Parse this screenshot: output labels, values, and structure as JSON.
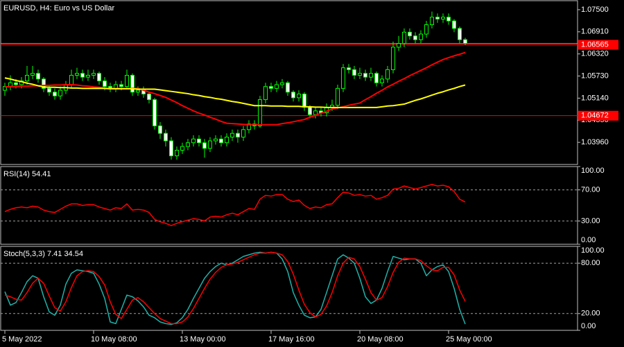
{
  "chart_data": [
    {
      "type": "candlestick",
      "title": "EURUSD, H4:  Euro vs US Dollar",
      "categories": [
        "5 May 2022",
        null,
        null,
        null,
        null,
        null,
        null,
        null,
        null,
        null,
        null,
        null,
        null,
        null,
        null,
        null,
        "10 May 08:00",
        null,
        null,
        null,
        null,
        null,
        null,
        null,
        null,
        null,
        null,
        null,
        null,
        null,
        null,
        null,
        "13 May 00:00",
        null,
        null,
        null,
        null,
        null,
        null,
        null,
        null,
        null,
        null,
        null,
        null,
        null,
        null,
        null,
        "17 May 16:00",
        null,
        null,
        null,
        null,
        null,
        null,
        null,
        null,
        null,
        null,
        null,
        null,
        null,
        null,
        null,
        "20 May 08:00",
        null,
        null,
        null,
        null,
        null,
        null,
        null,
        null,
        null,
        null,
        null,
        null,
        null,
        null,
        null,
        "25 May 00:00",
        null,
        null,
        null
      ],
      "open": [
        1.0535,
        1.0545,
        1.0555,
        1.055,
        1.056,
        1.0575,
        1.058,
        1.0565,
        1.054,
        1.053,
        1.052,
        1.0535,
        1.055,
        1.0575,
        1.058,
        1.057,
        1.0575,
        1.058,
        1.056,
        1.0545,
        1.054,
        1.055,
        1.0545,
        1.0575,
        1.053,
        1.0535,
        1.0525,
        1.051,
        1.044,
        1.042,
        1.04,
        1.036,
        1.0375,
        1.0385,
        1.0395,
        1.0405,
        1.0395,
        1.038,
        1.04,
        1.0405,
        1.0395,
        1.041,
        1.042,
        1.041,
        1.043,
        1.0445,
        1.044,
        1.051,
        1.0545,
        1.054,
        1.055,
        1.0555,
        1.053,
        1.0515,
        1.0525,
        1.049,
        1.047,
        1.048,
        1.0475,
        1.049,
        1.0495,
        1.054,
        1.0595,
        1.059,
        1.0575,
        1.058,
        1.057,
        1.058,
        1.0555,
        1.0565,
        1.059,
        1.065,
        1.066,
        1.069,
        1.068,
        1.067,
        1.0685,
        1.071,
        1.073,
        1.0725,
        1.073,
        1.072,
        1.07,
        1.067
      ],
      "high": [
        1.0555,
        1.0575,
        1.0565,
        1.057,
        1.06,
        1.06,
        1.059,
        1.057,
        1.055,
        1.054,
        1.0545,
        1.056,
        1.059,
        1.0595,
        1.059,
        1.059,
        1.059,
        1.0585,
        1.057,
        1.0555,
        1.056,
        1.056,
        1.059,
        1.058,
        1.0545,
        1.0545,
        1.053,
        1.0515,
        1.045,
        1.043,
        1.041,
        1.0385,
        1.0395,
        1.0405,
        1.0415,
        1.0415,
        1.0405,
        1.041,
        1.0415,
        1.0415,
        1.042,
        1.043,
        1.043,
        1.044,
        1.0455,
        1.0455,
        1.052,
        1.0555,
        1.0555,
        1.056,
        1.0565,
        1.056,
        1.0535,
        1.0535,
        1.053,
        1.0495,
        1.049,
        1.049,
        1.05,
        1.051,
        1.055,
        1.0605,
        1.0605,
        1.06,
        1.0595,
        1.059,
        1.0595,
        1.0585,
        1.0575,
        1.06,
        1.0665,
        1.068,
        1.07,
        1.07,
        1.069,
        1.0695,
        1.072,
        1.0745,
        1.074,
        1.074,
        1.074,
        1.0725,
        1.0705,
        1.0675
      ],
      "low": [
        1.052,
        1.0535,
        1.054,
        1.054,
        1.055,
        1.0565,
        1.0555,
        1.053,
        1.052,
        1.051,
        1.051,
        1.0525,
        1.054,
        1.0565,
        1.056,
        1.056,
        1.0565,
        1.055,
        1.0535,
        1.053,
        1.053,
        1.0535,
        1.054,
        1.052,
        1.052,
        1.0515,
        1.05,
        1.043,
        1.0405,
        1.0385,
        1.035,
        1.035,
        1.0365,
        1.0375,
        1.0385,
        1.0385,
        1.0355,
        1.037,
        1.039,
        1.0385,
        1.0385,
        1.04,
        1.0395,
        1.04,
        1.042,
        1.043,
        1.0435,
        1.05,
        1.053,
        1.053,
        1.054,
        1.052,
        1.0505,
        1.0505,
        1.048,
        1.046,
        1.046,
        1.0465,
        1.0465,
        1.048,
        1.0485,
        1.053,
        1.058,
        1.0565,
        1.0565,
        1.056,
        1.056,
        1.0545,
        1.0545,
        1.0555,
        1.058,
        1.064,
        1.065,
        1.067,
        1.066,
        1.066,
        1.0675,
        1.07,
        1.0715,
        1.0715,
        1.071,
        1.069,
        1.066,
        1.0655
      ],
      "close": [
        1.0545,
        1.0555,
        1.055,
        1.056,
        1.0575,
        1.058,
        1.0565,
        1.054,
        1.053,
        1.052,
        1.0535,
        1.055,
        1.0575,
        1.058,
        1.057,
        1.0575,
        1.058,
        1.056,
        1.0545,
        1.054,
        1.055,
        1.0545,
        1.0575,
        1.053,
        1.0535,
        1.0525,
        1.051,
        1.044,
        1.042,
        1.04,
        1.036,
        1.0375,
        1.0385,
        1.0395,
        1.0405,
        1.0395,
        1.038,
        1.04,
        1.0405,
        1.0395,
        1.041,
        1.042,
        1.041,
        1.043,
        1.0445,
        1.044,
        1.051,
        1.0545,
        1.054,
        1.055,
        1.0555,
        1.053,
        1.0515,
        1.0525,
        1.049,
        1.047,
        1.048,
        1.0475,
        1.049,
        1.0495,
        1.054,
        1.0595,
        1.059,
        1.0575,
        1.058,
        1.057,
        1.058,
        1.0555,
        1.0565,
        1.059,
        1.065,
        1.066,
        1.069,
        1.068,
        1.067,
        1.0685,
        1.071,
        1.073,
        1.0725,
        1.073,
        1.072,
        1.07,
        1.067,
        1.066
      ],
      "candle_color": "#00ff00",
      "up_fill": "#000000",
      "down_fill": "#ffffff",
      "series": [
        {
          "color": "#ff0000",
          "values": [
            1.0544,
            1.0545,
            1.0545,
            1.0546,
            1.0546,
            1.0547,
            1.0547,
            1.0548,
            1.0548,
            1.0549,
            1.0549,
            1.055,
            1.055,
            1.0549,
            1.0547,
            1.0546,
            1.0544,
            1.0543,
            1.0541,
            1.054,
            1.054,
            1.054,
            1.054,
            1.054,
            1.054,
            1.0535,
            1.053,
            1.0526,
            1.0521,
            1.0516,
            1.0509,
            1.0502,
            1.0494,
            1.0487,
            1.048,
            1.0474,
            1.0469,
            1.0463,
            1.0458,
            1.0452,
            1.0447,
            1.0446,
            1.0445,
            1.0444,
            1.0443,
            1.0443,
            1.0443,
            1.0443,
            1.0443,
            1.0443,
            1.0446,
            1.0448,
            1.0451,
            1.0454,
            1.0457,
            1.0463,
            1.0468,
            1.0474,
            1.0479,
            1.0485,
            1.0488,
            1.0491,
            1.0495,
            1.0498,
            1.0501,
            1.051,
            1.0518,
            1.0527,
            1.0535,
            1.0544,
            1.0551,
            1.0559,
            1.0566,
            1.0574,
            1.0581,
            1.0588,
            1.0595,
            1.0603,
            1.061,
            1.0617,
            1.0622,
            1.0627,
            1.0631,
            1.0636
          ]
        },
        {
          "color": "#ffff00",
          "values": [
            1.0568,
            1.0565,
            1.0561,
            1.0558,
            1.0554,
            1.0551,
            1.0547,
            1.0544,
            1.0543,
            1.0543,
            1.0542,
            1.0542,
            1.0541,
            1.0541,
            1.054,
            1.054,
            1.054,
            1.054,
            1.054,
            1.0539,
            1.0539,
            1.0539,
            1.0539,
            1.0539,
            1.0538,
            1.0538,
            1.0538,
            1.0538,
            1.0536,
            1.0534,
            1.0532,
            1.053,
            1.0528,
            1.0526,
            1.0523,
            1.0521,
            1.0518,
            1.0516,
            1.0513,
            1.0511,
            1.0508,
            1.0505,
            1.0503,
            1.05,
            1.0497,
            1.0494,
            1.0494,
            1.0494,
            1.0493,
            1.0493,
            1.0493,
            1.0492,
            1.0492,
            1.0492,
            1.0491,
            1.0491,
            1.049,
            1.049,
            1.0489,
            1.0489,
            1.0489,
            1.0489,
            1.0489,
            1.0489,
            1.0489,
            1.0489,
            1.0489,
            1.0489,
            1.0491,
            1.0493,
            1.0494,
            1.0496,
            1.0498,
            1.0503,
            1.0508,
            1.0512,
            1.0517,
            1.0522,
            1.0527,
            1.0531,
            1.0536,
            1.054,
            1.0545,
            1.0549
          ]
        }
      ],
      "ylim": [
        1.0337,
        1.0774
      ],
      "yticks": [
        {
          "value": 1.075,
          "label": "1.07500"
        },
        {
          "value": 1.0691,
          "label": "1.06910"
        },
        {
          "value": 1.0632,
          "label": "1.06320"
        },
        {
          "value": 1.0573,
          "label": "1.05730"
        },
        {
          "value": 1.0514,
          "label": "1.05140"
        },
        {
          "value": 1.0455,
          "label": "1.04550"
        },
        {
          "value": 1.0396,
          "label": "1.03960"
        }
      ],
      "levels": [
        {
          "value": 1.06565,
          "label": "1.06565"
        },
        {
          "value": 1.04672,
          "label": "1.04672"
        }
      ],
      "level_color": "#ff0000"
    },
    {
      "type": "line",
      "title": "RSI(14) 54.41",
      "series": [
        {
          "color": "#ff0000",
          "values": [
            42,
            45,
            47,
            48,
            47,
            49,
            48,
            44,
            42,
            41,
            45,
            49,
            52,
            52,
            50,
            51,
            51,
            48,
            46,
            44,
            47,
            46,
            52,
            44,
            45,
            44,
            41,
            32,
            29,
            27,
            24,
            27,
            29,
            31,
            33,
            32,
            30,
            35,
            36,
            35,
            38,
            40,
            38,
            42,
            46,
            45,
            58,
            63,
            62,
            64,
            64,
            58,
            55,
            57,
            50,
            46,
            48,
            47,
            51,
            52,
            60,
            67,
            66,
            63,
            64,
            62,
            63,
            58,
            60,
            63,
            71,
            72,
            75,
            73,
            71,
            73,
            75,
            77,
            75,
            76,
            74,
            68,
            58,
            54.41
          ]
        }
      ],
      "ylim": [
        0,
        100
      ],
      "yticks": [
        {
          "value": 100,
          "label": "100.00"
        },
        {
          "value": 70,
          "label": "70.00"
        },
        {
          "value": 30,
          "label": "30.00"
        },
        {
          "value": 0,
          "label": "0.00"
        }
      ],
      "levels": [
        30,
        70
      ]
    },
    {
      "type": "line",
      "title": "Stoch(5,3,3) 7.41 34.54",
      "series": [
        {
          "color": "#20b2aa",
          "values": [
            46,
            30,
            33,
            45,
            58,
            65,
            62,
            40,
            22,
            18,
            30,
            55,
            68,
            72,
            71,
            70,
            68,
            55,
            38,
            10,
            8,
            25,
            42,
            40,
            35,
            28,
            18,
            15,
            10,
            8,
            7,
            9,
            15,
            25,
            38,
            50,
            62,
            70,
            76,
            80,
            78,
            80,
            84,
            88,
            90,
            92,
            93,
            92,
            93,
            92,
            85,
            70,
            45,
            30,
            18,
            15,
            16,
            25,
            45,
            65,
            85,
            90,
            86,
            80,
            62,
            40,
            32,
            36,
            50,
            70,
            88,
            86,
            84,
            85,
            85,
            80,
            65,
            72,
            76,
            78,
            70,
            50,
            25,
            7.41
          ]
        },
        {
          "color": "#ff0000",
          "values": [
            42,
            40,
            37,
            36,
            45,
            56,
            62,
            56,
            41,
            27,
            23,
            34,
            51,
            65,
            70,
            71,
            70,
            64,
            54,
            34,
            19,
            14,
            25,
            36,
            39,
            34,
            27,
            20,
            14,
            11,
            8,
            8,
            10,
            16,
            26,
            38,
            50,
            61,
            69,
            75,
            78,
            79,
            81,
            84,
            87,
            90,
            92,
            92,
            93,
            92,
            90,
            82,
            67,
            48,
            31,
            21,
            16,
            19,
            29,
            45,
            65,
            80,
            87,
            85,
            76,
            61,
            45,
            36,
            39,
            52,
            69,
            81,
            86,
            85,
            85,
            83,
            77,
            72,
            71,
            75,
            75,
            66,
            48,
            34.54
          ]
        }
      ],
      "ylim": [
        0,
        100
      ],
      "yticks": [
        {
          "value": 100,
          "label": "100.00"
        },
        {
          "value": 80,
          "label": "80.00"
        },
        {
          "value": 20,
          "label": "20.00"
        },
        {
          "value": 0,
          "label": "0.00"
        }
      ],
      "levels": [
        20,
        80
      ]
    }
  ]
}
